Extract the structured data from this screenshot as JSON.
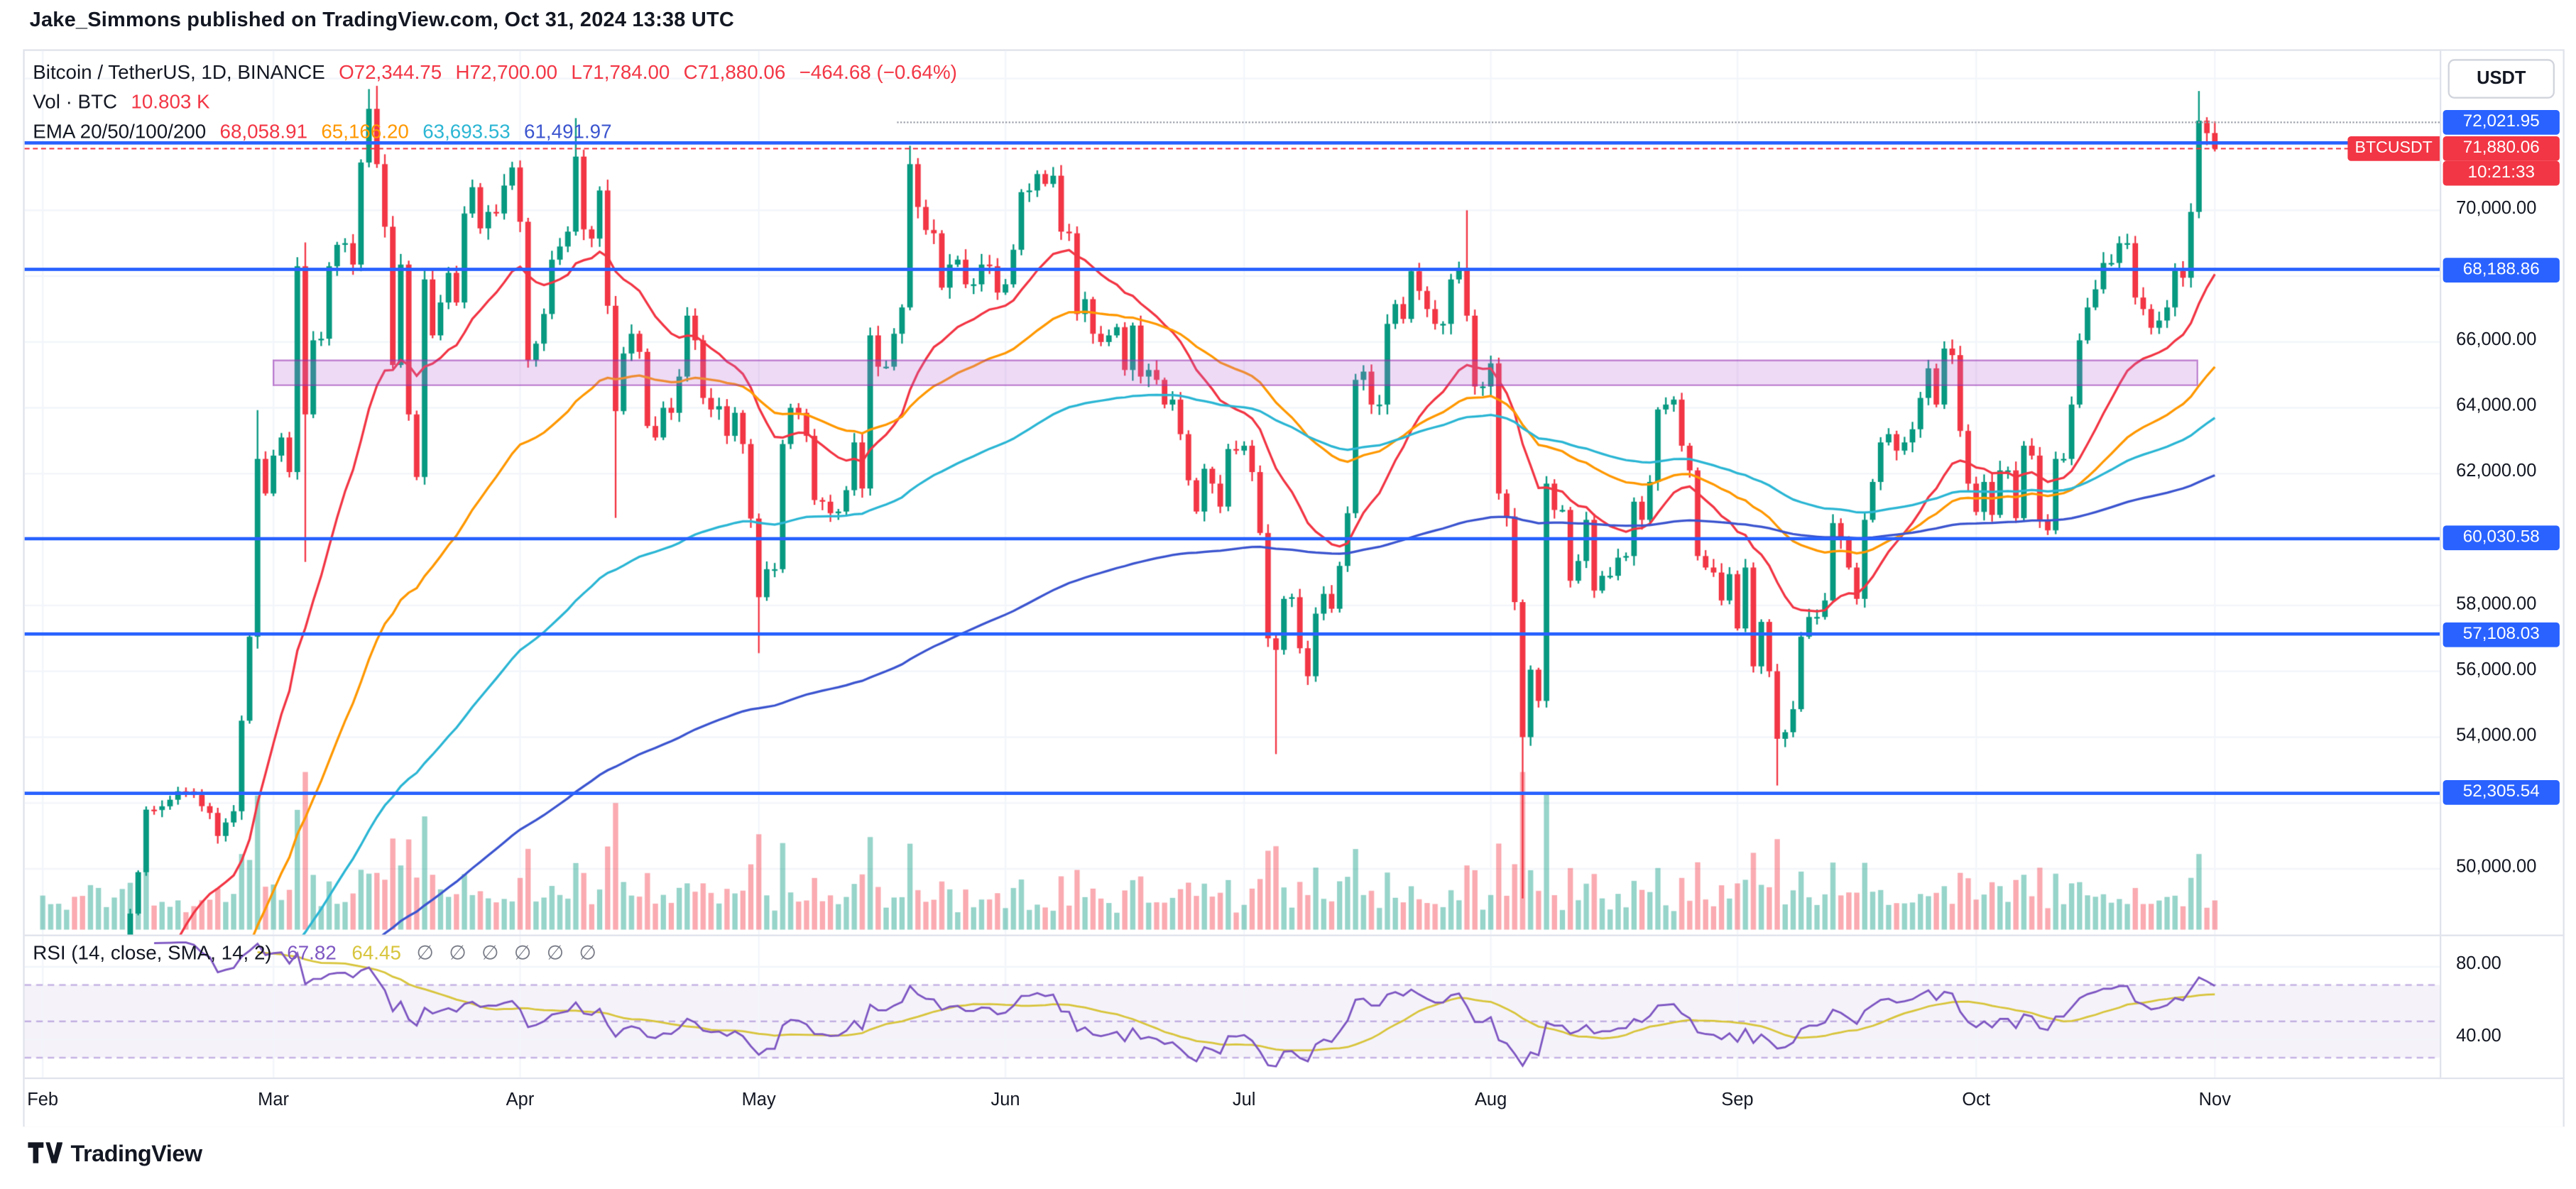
{
  "page": {
    "publish_line": "Jake_Simmons published on TradingView.com, Oct 31, 2024 13:38 UTC",
    "brand": "TradingView"
  },
  "header": {
    "symbol_title": "Bitcoin / TetherUS, 1D, BINANCE",
    "ohlc": [
      "O72,344.75",
      "H72,700.00",
      "L71,784.00",
      "C71,880.06",
      "−464.68 (−0.64%)"
    ],
    "volume_row": {
      "label": "Vol · BTC",
      "value": "10.803 K"
    },
    "ema_row": {
      "label": "EMA 20/50/100/200",
      "values": [
        "68,058.91",
        "65,166.20",
        "63,693.53",
        "61,491.97"
      ]
    }
  },
  "price_scale": {
    "currency_button": "USDT",
    "badge_blue": "#2962ff",
    "badge_red": "#f23645",
    "plain_labels": [
      {
        "text": "70,000.00",
        "price": 70000
      },
      {
        "text": "66,000.00",
        "price": 66000
      },
      {
        "text": "64,000.00",
        "price": 64000
      },
      {
        "text": "62,000.00",
        "price": 62000
      },
      {
        "text": "58,000.00",
        "price": 58000
      },
      {
        "text": "56,000.00",
        "price": 56000
      },
      {
        "text": "54,000.00",
        "price": 54000
      },
      {
        "text": "50,000.00",
        "price": 50000
      }
    ],
    "line_badges": [
      {
        "text": "72,021.95",
        "price": 72021.95
      },
      {
        "text": "68,188.86",
        "price": 68188.86
      },
      {
        "text": "60,030.58",
        "price": 60030.58
      },
      {
        "text": "57,108.03",
        "price": 57108.03
      },
      {
        "text": "52,305.54",
        "price": 52305.54
      }
    ],
    "last_price_badge": {
      "text": "71,880.06",
      "price": 71880.06
    },
    "countdown_badge": "10:21:33",
    "symbol_badge": "BTCUSDT",
    "rsi_labels": [
      {
        "text": "80.00",
        "value": 80
      },
      {
        "text": "40.00",
        "value": 40
      }
    ]
  },
  "rsi_pane": {
    "title": "RSI (14, close, SMA, 14, 2)",
    "value_main": "67.82",
    "value_signal": "64.45",
    "empty_values": [
      "∅",
      "∅",
      "∅",
      "∅",
      "∅",
      "∅"
    ],
    "color_main": "#7e57c2",
    "color_signal": "#d8c53e",
    "levels": {
      "upper": 70,
      "middle": 50,
      "lower": 30
    },
    "axis_values": [
      80,
      40
    ]
  },
  "time_axis": {
    "labels": [
      {
        "text": "Feb",
        "day": 0
      },
      {
        "text": "Mar",
        "day": 29
      },
      {
        "text": "Apr",
        "day": 60
      },
      {
        "text": "May",
        "day": 90
      },
      {
        "text": "Jun",
        "day": 121
      },
      {
        "text": "Jul",
        "day": 151
      },
      {
        "text": "Aug",
        "day": 182
      },
      {
        "text": "Sep",
        "day": 213
      },
      {
        "text": "Oct",
        "day": 243
      },
      {
        "text": "Nov",
        "day": 273
      }
    ]
  },
  "chart_data": {
    "type": "candlestick",
    "title": "Bitcoin / TetherUS, 1D, BINANCE",
    "symbol": "BTCUSDT",
    "interval": "1D",
    "quote_currency": "USDT",
    "last_candle": {
      "open": 72344.75,
      "high": 72700.0,
      "low": 71784.0,
      "close": 71880.06,
      "change": -464.68,
      "change_pct": -0.64
    },
    "last_volume_btc": "10.803 K",
    "last_price": 71880.06,
    "price_axis": {
      "visible_min": 48000,
      "visible_max": 74800,
      "gridline_step": 2000
    },
    "days_total": 274,
    "horizontal_lines": [
      72021.95,
      68188.86,
      60030.58,
      57108.03,
      52305.54
    ],
    "zone": {
      "price_top": 65437,
      "price_bottom": 64639,
      "day_start": 29,
      "day_end": 271,
      "fill": "#ba68c8",
      "border": "#8e24aa"
    },
    "emas": {
      "periods": [
        20,
        50,
        100,
        200
      ],
      "colors": [
        "#f23645",
        "#ff9800",
        "#2cb6d4",
        "#3c55cf"
      ],
      "last_values": [
        68058.91,
        65166.2,
        63693.53,
        61491.97
      ]
    },
    "rsi": {
      "period": 14,
      "signal_period": 14,
      "last": 67.82,
      "signal_last": 64.45
    },
    "volume_colors": {
      "up": "#089981",
      "down": "#f23645",
      "opacity": 0.42
    },
    "candle_colors": {
      "up": "#089981",
      "down": "#f23645"
    },
    "price_anchors": [
      [
        0,
        43080
      ],
      [
        3,
        43900
      ],
      [
        5,
        43200
      ],
      [
        7,
        45300
      ],
      [
        9,
        46200
      ],
      [
        10,
        47150
      ],
      [
        12,
        49900
      ],
      [
        13,
        51800
      ],
      [
        15,
        51900
      ],
      [
        16,
        52100
      ],
      [
        18,
        52350
      ],
      [
        19,
        52250
      ],
      [
        21,
        51700
      ],
      [
        22,
        51000
      ],
      [
        24,
        51750
      ],
      [
        25,
        54500
      ],
      [
        26,
        57050
      ],
      [
        27,
        62450
      ],
      [
        28,
        61400
      ],
      [
        29,
        62550
      ],
      [
        30,
        63100
      ],
      [
        31,
        62050
      ],
      [
        32,
        68300
      ],
      [
        33,
        63800
      ],
      [
        34,
        66050
      ],
      [
        35,
        66100
      ],
      [
        36,
        68300
      ],
      [
        37,
        68950
      ],
      [
        38,
        69000
      ],
      [
        39,
        68350
      ],
      [
        40,
        71450
      ],
      [
        41,
        73080
      ],
      [
        42,
        71400
      ],
      [
        43,
        69500
      ],
      [
        44,
        65300
      ],
      [
        45,
        68350
      ],
      [
        46,
        63800
      ],
      [
        47,
        61900
      ],
      [
        48,
        67900
      ],
      [
        49,
        66200
      ],
      [
        50,
        67200
      ],
      [
        51,
        68100
      ],
      [
        52,
        67200
      ],
      [
        53,
        69900
      ],
      [
        54,
        70700
      ],
      [
        55,
        69450
      ],
      [
        56,
        69950
      ],
      [
        57,
        69900
      ],
      [
        58,
        70750
      ],
      [
        59,
        71300
      ],
      [
        60,
        69650
      ],
      [
        61,
        65450
      ],
      [
        62,
        65950
      ],
      [
        63,
        66850
      ],
      [
        64,
        68500
      ],
      [
        65,
        68900
      ],
      [
        66,
        69350
      ],
      [
        67,
        71630
      ],
      [
        68,
        69420
      ],
      [
        69,
        69140
      ],
      [
        70,
        70600
      ],
      [
        71,
        67100
      ],
      [
        72,
        63900
      ],
      [
        73,
        65650
      ],
      [
        74,
        66250
      ],
      [
        75,
        65700
      ],
      [
        76,
        63450
      ],
      [
        77,
        63100
      ],
      [
        78,
        64000
      ],
      [
        79,
        63850
      ],
      [
        80,
        64950
      ],
      [
        81,
        66800
      ],
      [
        82,
        66050
      ],
      [
        83,
        64300
      ],
      [
        84,
        63950
      ],
      [
        85,
        64050
      ],
      [
        86,
        63150
      ],
      [
        87,
        63850
      ],
      [
        88,
        62900
      ],
      [
        89,
        60640
      ],
      [
        90,
        58250
      ],
      [
        91,
        59100
      ],
      [
        92,
        59100
      ],
      [
        93,
        62900
      ],
      [
        94,
        64000
      ],
      [
        95,
        63850
      ],
      [
        96,
        63150
      ],
      [
        97,
        61200
      ],
      [
        98,
        61150
      ],
      [
        99,
        60800
      ],
      [
        100,
        60850
      ],
      [
        101,
        61500
      ],
      [
        102,
        62950
      ],
      [
        103,
        61550
      ],
      [
        104,
        66200
      ],
      [
        105,
        65250
      ],
      [
        106,
        65250
      ],
      [
        107,
        66250
      ],
      [
        108,
        67050
      ],
      [
        109,
        71400
      ],
      [
        110,
        70100
      ],
      [
        111,
        69400
      ],
      [
        112,
        69300
      ],
      [
        113,
        67650
      ],
      [
        114,
        68350
      ],
      [
        115,
        68500
      ],
      [
        116,
        67750
      ],
      [
        117,
        67750
      ],
      [
        118,
        68350
      ],
      [
        119,
        68300
      ],
      [
        120,
        67500
      ],
      [
        121,
        67750
      ],
      [
        122,
        68800
      ],
      [
        123,
        70550
      ],
      [
        124,
        70600
      ],
      [
        125,
        71100
      ],
      [
        126,
        70800
      ],
      [
        127,
        71050
      ],
      [
        128,
        69350
      ],
      [
        129,
        69300
      ],
      [
        130,
        66850
      ],
      [
        131,
        67300
      ],
      [
        132,
        66250
      ],
      [
        133,
        66000
      ],
      [
        134,
        66200
      ],
      [
        135,
        66450
      ],
      [
        136,
        65150
      ],
      [
        137,
        66500
      ],
      [
        138,
        64950
      ],
      [
        139,
        65150
      ],
      [
        140,
        64850
      ],
      [
        141,
        64100
      ],
      [
        142,
        64250
      ],
      [
        143,
        63200
      ],
      [
        144,
        61800
      ],
      [
        145,
        60850
      ],
      [
        146,
        62150
      ],
      [
        147,
        61700
      ],
      [
        148,
        61000
      ],
      [
        149,
        62750
      ],
      [
        150,
        62700
      ],
      [
        151,
        62850
      ],
      [
        152,
        62050
      ],
      [
        153,
        60200
      ],
      [
        154,
        57000
      ],
      [
        155,
        56650
      ],
      [
        156,
        58200
      ],
      [
        157,
        58250
      ],
      [
        158,
        56700
      ],
      [
        159,
        55850
      ],
      [
        160,
        57750
      ],
      [
        161,
        58350
      ],
      [
        162,
        57900
      ],
      [
        163,
        59200
      ],
      [
        164,
        60800
      ],
      [
        165,
        64850
      ],
      [
        166,
        65100
      ],
      [
        167,
        64100
      ],
      [
        168,
        64100
      ],
      [
        169,
        66550
      ],
      [
        170,
        67150
      ],
      [
        171,
        66700
      ],
      [
        172,
        68150
      ],
      [
        173,
        67550
      ],
      [
        174,
        67000
      ],
      [
        175,
        66550
      ],
      [
        176,
        66550
      ],
      [
        177,
        67900
      ],
      [
        178,
        68250
      ],
      [
        179,
        66800
      ],
      [
        180,
        64650
      ],
      [
        181,
        64650
      ],
      [
        182,
        65350
      ],
      [
        183,
        61400
      ],
      [
        184,
        60700
      ],
      [
        185,
        58100
      ],
      [
        186,
        54000
      ],
      [
        187,
        56050
      ],
      [
        188,
        55100
      ],
      [
        189,
        61700
      ],
      [
        190,
        60900
      ],
      [
        191,
        60900
      ],
      [
        192,
        58750
      ],
      [
        193,
        59350
      ],
      [
        194,
        60600
      ],
      [
        195,
        58450
      ],
      [
        196,
        58900
      ],
      [
        197,
        58900
      ],
      [
        198,
        59450
      ],
      [
        199,
        59500
      ],
      [
        200,
        61150
      ],
      [
        201,
        60600
      ],
      [
        202,
        61750
      ],
      [
        203,
        63950
      ],
      [
        204,
        64100
      ],
      [
        205,
        64250
      ],
      [
        206,
        62850
      ],
      [
        207,
        62100
      ],
      [
        208,
        59500
      ],
      [
        209,
        59150
      ],
      [
        210,
        59000
      ],
      [
        211,
        58150
      ],
      [
        212,
        58950
      ],
      [
        213,
        57300
      ],
      [
        214,
        59150
      ],
      [
        215,
        56150
      ],
      [
        216,
        57500
      ],
      [
        217,
        56000
      ],
      [
        218,
        53950
      ],
      [
        219,
        54150
      ],
      [
        220,
        54850
      ],
      [
        221,
        57050
      ],
      [
        222,
        57650
      ],
      [
        223,
        57650
      ],
      [
        224,
        58150
      ],
      [
        225,
        60500
      ],
      [
        226,
        60000
      ],
      [
        227,
        59150
      ],
      [
        228,
        58200
      ],
      [
        229,
        60600
      ],
      [
        230,
        61750
      ],
      [
        231,
        62950
      ],
      [
        232,
        63200
      ],
      [
        233,
        62700
      ],
      [
        234,
        62950
      ],
      [
        235,
        63350
      ],
      [
        236,
        64300
      ],
      [
        237,
        65200
      ],
      [
        238,
        64100
      ],
      [
        239,
        65800
      ],
      [
        240,
        65600
      ],
      [
        241,
        63300
      ],
      [
        242,
        61700
      ],
      [
        243,
        60840
      ],
      [
        244,
        61750
      ],
      [
        245,
        60750
      ],
      [
        246,
        62100
      ],
      [
        247,
        62100
      ],
      [
        248,
        60650
      ],
      [
        249,
        62850
      ],
      [
        250,
        62550
      ],
      [
        251,
        60600
      ],
      [
        252,
        60280
      ],
      [
        253,
        62450
      ],
      [
        254,
        62450
      ],
      [
        255,
        64100
      ],
      [
        256,
        66050
      ],
      [
        257,
        67050
      ],
      [
        258,
        67600
      ],
      [
        259,
        68400
      ],
      [
        260,
        68400
      ],
      [
        261,
        69000
      ],
      [
        262,
        69000
      ],
      [
        263,
        67350
      ],
      [
        264,
        67000
      ],
      [
        265,
        66430
      ],
      [
        266,
        66650
      ],
      [
        267,
        67050
      ],
      [
        268,
        68160
      ],
      [
        269,
        67950
      ],
      [
        270,
        69950
      ],
      [
        271,
        72720
      ],
      [
        272,
        72340
      ],
      [
        273,
        71880.06
      ]
    ],
    "key_candles": [
      {
        "day": 27,
        "low": 56690,
        "high": 63930
      },
      {
        "day": 33,
        "low": 59323,
        "high": 69020
      },
      {
        "day": 41,
        "high": 73680
      },
      {
        "day": 42,
        "high": 73777
      },
      {
        "day": 67,
        "high": 72797
      },
      {
        "day": 72,
        "low": 60660
      },
      {
        "day": 90,
        "low": 56552
      },
      {
        "day": 109,
        "high": 71957
      },
      {
        "day": 155,
        "low": 53485
      },
      {
        "day": 179,
        "high": 69999
      },
      {
        "day": 186,
        "low": 49100
      },
      {
        "day": 218,
        "low": 52530
      },
      {
        "day": 271,
        "high": 73620
      },
      {
        "day": 273,
        "open": 72344.75,
        "high": 72700,
        "low": 71784,
        "close": 71880.06
      }
    ]
  }
}
